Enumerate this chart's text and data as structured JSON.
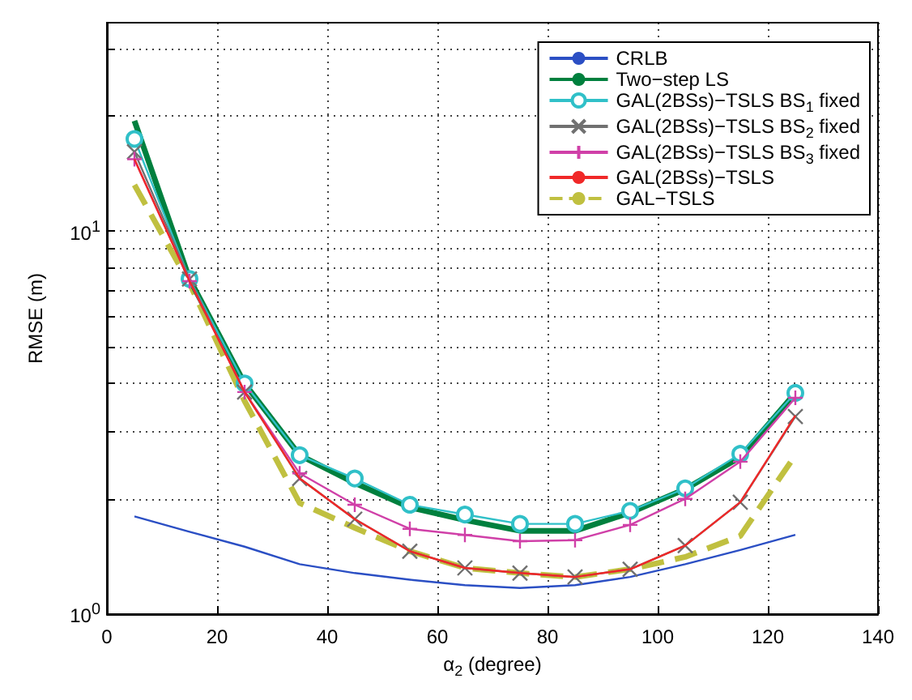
{
  "chart_data": {
    "type": "line",
    "xlabel": "α$_{2}$ (degree)",
    "ylabel": "RMSE (m)",
    "x": [
      5,
      15,
      25,
      35,
      45,
      55,
      65,
      75,
      85,
      95,
      105,
      115,
      125
    ],
    "xlim": [
      0,
      140
    ],
    "xticks": [
      0,
      20,
      40,
      60,
      80,
      100,
      120,
      140
    ],
    "ylim": [
      1,
      35
    ],
    "log": true,
    "yticks": [
      {
        "value": 1,
        "label": "10$^{0}$"
      },
      {
        "value": 2,
        "label": null
      },
      {
        "value": 3,
        "label": null
      },
      {
        "value": 4,
        "label": null
      },
      {
        "value": 5,
        "label": null
      },
      {
        "value": 6,
        "label": null
      },
      {
        "value": 7,
        "label": null
      },
      {
        "value": 8,
        "label": null
      },
      {
        "value": 9,
        "label": null
      },
      {
        "value": 10,
        "label": "10$^{1}$"
      },
      {
        "value": 20,
        "label": null
      },
      {
        "value": 30,
        "label": null
      }
    ],
    "grid": true,
    "legend": "top right",
    "series": [
      {
        "name": "CRLB",
        "color": "#2b4fc4",
        "marker": "none",
        "values": [
          1.8,
          1.64,
          1.5,
          1.35,
          1.28,
          1.23,
          1.19,
          1.17,
          1.19,
          1.25,
          1.35,
          1.47,
          1.61
        ]
      },
      {
        "name": "Two−step LS",
        "color": "#00803e",
        "marker": "none",
        "values": [
          19.4,
          7.5,
          4.0,
          2.6,
          2.2,
          1.9,
          1.76,
          1.65,
          1.65,
          1.84,
          2.12,
          2.57,
          3.78
        ]
      },
      {
        "name": "GAL(2BSs)−TSLS BS$_{1}$ fixed",
        "color": "#30c0c8",
        "marker": "circle",
        "values": [
          17.4,
          7.5,
          4.0,
          2.6,
          2.26,
          1.93,
          1.82,
          1.72,
          1.72,
          1.86,
          2.13,
          2.62,
          3.78
        ]
      },
      {
        "name": "GAL(2BSs)−TSLS BS$_{2}$ fixed",
        "color": "#707070",
        "marker": "cross",
        "values": [
          16.1,
          7.5,
          3.8,
          2.26,
          1.77,
          1.46,
          1.32,
          1.28,
          1.25,
          1.31,
          1.51,
          1.96,
          3.28
        ]
      },
      {
        "name": "GAL(2BSs)−TSLS BS$_{3}$ fixed",
        "color": "#d040a8",
        "marker": "plus",
        "values": [
          15.4,
          7.4,
          3.8,
          2.33,
          1.93,
          1.67,
          1.61,
          1.55,
          1.56,
          1.71,
          2.0,
          2.5,
          3.67
        ]
      },
      {
        "name": "GAL(2BSs)−TSLS",
        "color": "#f02828",
        "marker": "none",
        "values": [
          15.4,
          7.4,
          3.8,
          2.26,
          1.77,
          1.46,
          1.32,
          1.28,
          1.25,
          1.31,
          1.51,
          1.96,
          3.3
        ]
      },
      {
        "name": "GAL−TSLS",
        "color": "#c0c040",
        "marker": "none",
        "line_style": "dashed",
        "values": [
          13.2,
          7.3,
          3.6,
          1.95,
          1.68,
          1.46,
          1.32,
          1.28,
          1.25,
          1.31,
          1.41,
          1.6,
          2.6
        ]
      }
    ]
  }
}
